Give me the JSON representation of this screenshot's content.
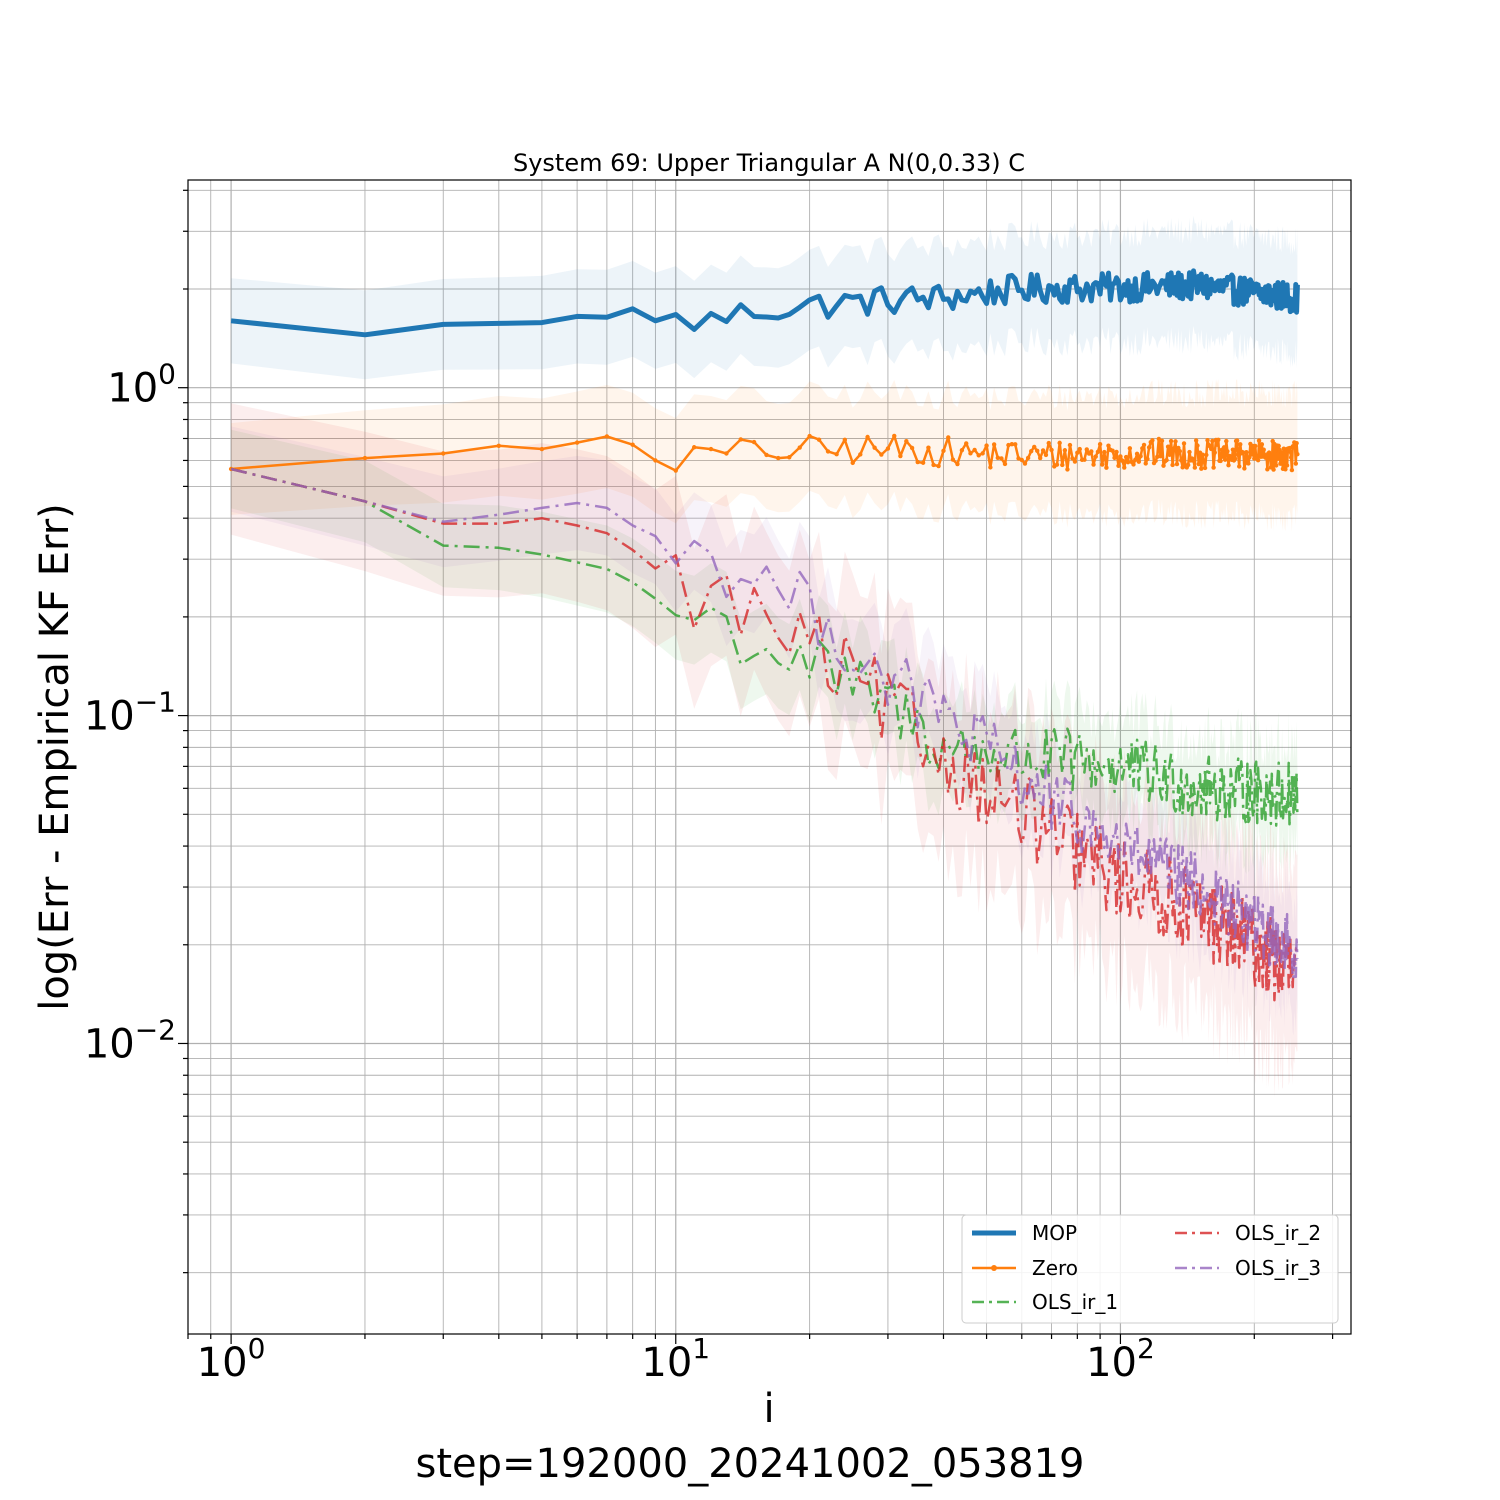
{
  "chart_data": {
    "type": "line",
    "title": "System 69: Upper Triangular A N(0,0.33) C",
    "xlabel": "i",
    "ylabel": "log(Err - Empirical KF Err)",
    "footer": "step=192000_20241002_053819",
    "xscale": "log",
    "yscale": "log",
    "xlim": [
      0.8,
      330
    ],
    "ylim": [
      0.0013,
      4.3
    ],
    "grid": true,
    "grid_minor": true,
    "legend_position": "lower-right",
    "legend_columns": 2,
    "x_ticks": [
      {
        "value": 1,
        "base": "10",
        "exp": "0"
      },
      {
        "value": 10,
        "base": "10",
        "exp": "1"
      },
      {
        "value": 100,
        "base": "10",
        "exp": "2"
      }
    ],
    "y_ticks": [
      {
        "value": 1,
        "base": "10",
        "exp": "0"
      },
      {
        "value": 0.1,
        "base": "10",
        "exp": "−1"
      },
      {
        "value": 0.01,
        "base": "10",
        "exp": "−2"
      }
    ],
    "series": [
      {
        "name": "MOP",
        "color": "#1f77b4",
        "style": "solid",
        "marker": false,
        "line_width": 5,
        "band_spread": 0.13,
        "noise": 0.045,
        "anchors": [
          [
            1,
            1.6
          ],
          [
            2,
            1.45
          ],
          [
            3,
            1.56
          ],
          [
            5,
            1.58
          ],
          [
            6,
            1.65
          ],
          [
            7,
            1.64
          ],
          [
            8,
            1.74
          ],
          [
            9,
            1.6
          ],
          [
            12,
            1.6
          ],
          [
            15,
            1.72
          ],
          [
            20,
            1.78
          ],
          [
            30,
            1.85
          ],
          [
            40,
            1.88
          ],
          [
            50,
            1.95
          ],
          [
            60,
            2.0
          ],
          [
            100,
            2.02
          ],
          [
            150,
            2.05
          ],
          [
            200,
            1.95
          ],
          [
            250,
            1.88
          ]
        ]
      },
      {
        "name": "Zero",
        "color": "#ff7f0e",
        "style": "solid",
        "marker": true,
        "line_width": 2.5,
        "band_spread": 0.14,
        "noise": 0.045,
        "anchors": [
          [
            1,
            0.565
          ],
          [
            2,
            0.61
          ],
          [
            3,
            0.63
          ],
          [
            4,
            0.665
          ],
          [
            5,
            0.65
          ],
          [
            6,
            0.68
          ],
          [
            7,
            0.71
          ],
          [
            8,
            0.67
          ],
          [
            9,
            0.6
          ],
          [
            15,
            0.64
          ],
          [
            30,
            0.65
          ],
          [
            60,
            0.62
          ],
          [
            120,
            0.63
          ],
          [
            250,
            0.62
          ]
        ]
      },
      {
        "name": "OLS_ir_1",
        "color": "#2ca02c",
        "style": "dashdot",
        "marker": false,
        "line_width": 2.5,
        "band_spread": 0.12,
        "noise": 0.1,
        "anchors": [
          [
            1,
            0.565
          ],
          [
            2,
            0.45
          ],
          [
            3,
            0.33
          ],
          [
            4,
            0.325
          ],
          [
            5,
            0.31
          ],
          [
            7,
            0.28
          ],
          [
            8,
            0.255
          ],
          [
            10,
            0.205
          ],
          [
            12,
            0.197
          ],
          [
            15,
            0.165
          ],
          [
            20,
            0.145
          ],
          [
            25,
            0.12
          ],
          [
            30,
            0.11
          ],
          [
            40,
            0.08
          ],
          [
            60,
            0.075
          ],
          [
            100,
            0.07
          ],
          [
            150,
            0.06
          ],
          [
            250,
            0.057
          ]
        ]
      },
      {
        "name": "OLS_ir_2",
        "color": "#d62728",
        "style": "dashdot",
        "marker": false,
        "line_width": 2.5,
        "band_spread": 0.2,
        "noise": 0.13,
        "anchors": [
          [
            1,
            0.565
          ],
          [
            2,
            0.45
          ],
          [
            3,
            0.385
          ],
          [
            4,
            0.385
          ],
          [
            5,
            0.4
          ],
          [
            6,
            0.38
          ],
          [
            7,
            0.36
          ],
          [
            8,
            0.32
          ],
          [
            10,
            0.25
          ],
          [
            12,
            0.23
          ],
          [
            15,
            0.2
          ],
          [
            20,
            0.16
          ],
          [
            25,
            0.125
          ],
          [
            30,
            0.105
          ],
          [
            40,
            0.075
          ],
          [
            60,
            0.05
          ],
          [
            80,
            0.038
          ],
          [
            100,
            0.032
          ],
          [
            150,
            0.025
          ],
          [
            200,
            0.02
          ],
          [
            250,
            0.016
          ]
        ]
      },
      {
        "name": "OLS_ir_3",
        "color": "#9467bd",
        "style": "dashdot",
        "marker": false,
        "line_width": 2.5,
        "band_spread": 0.13,
        "noise": 0.1,
        "anchors": [
          [
            1,
            0.565
          ],
          [
            2,
            0.45
          ],
          [
            3,
            0.39
          ],
          [
            4,
            0.41
          ],
          [
            5,
            0.43
          ],
          [
            6,
            0.445
          ],
          [
            7,
            0.43
          ],
          [
            8,
            0.38
          ],
          [
            10,
            0.33
          ],
          [
            12,
            0.3
          ],
          [
            15,
            0.27
          ],
          [
            20,
            0.21
          ],
          [
            25,
            0.16
          ],
          [
            30,
            0.13
          ],
          [
            40,
            0.1
          ],
          [
            60,
            0.065
          ],
          [
            80,
            0.048
          ],
          [
            100,
            0.04
          ],
          [
            150,
            0.03
          ],
          [
            200,
            0.023
          ],
          [
            250,
            0.019
          ]
        ]
      }
    ]
  }
}
